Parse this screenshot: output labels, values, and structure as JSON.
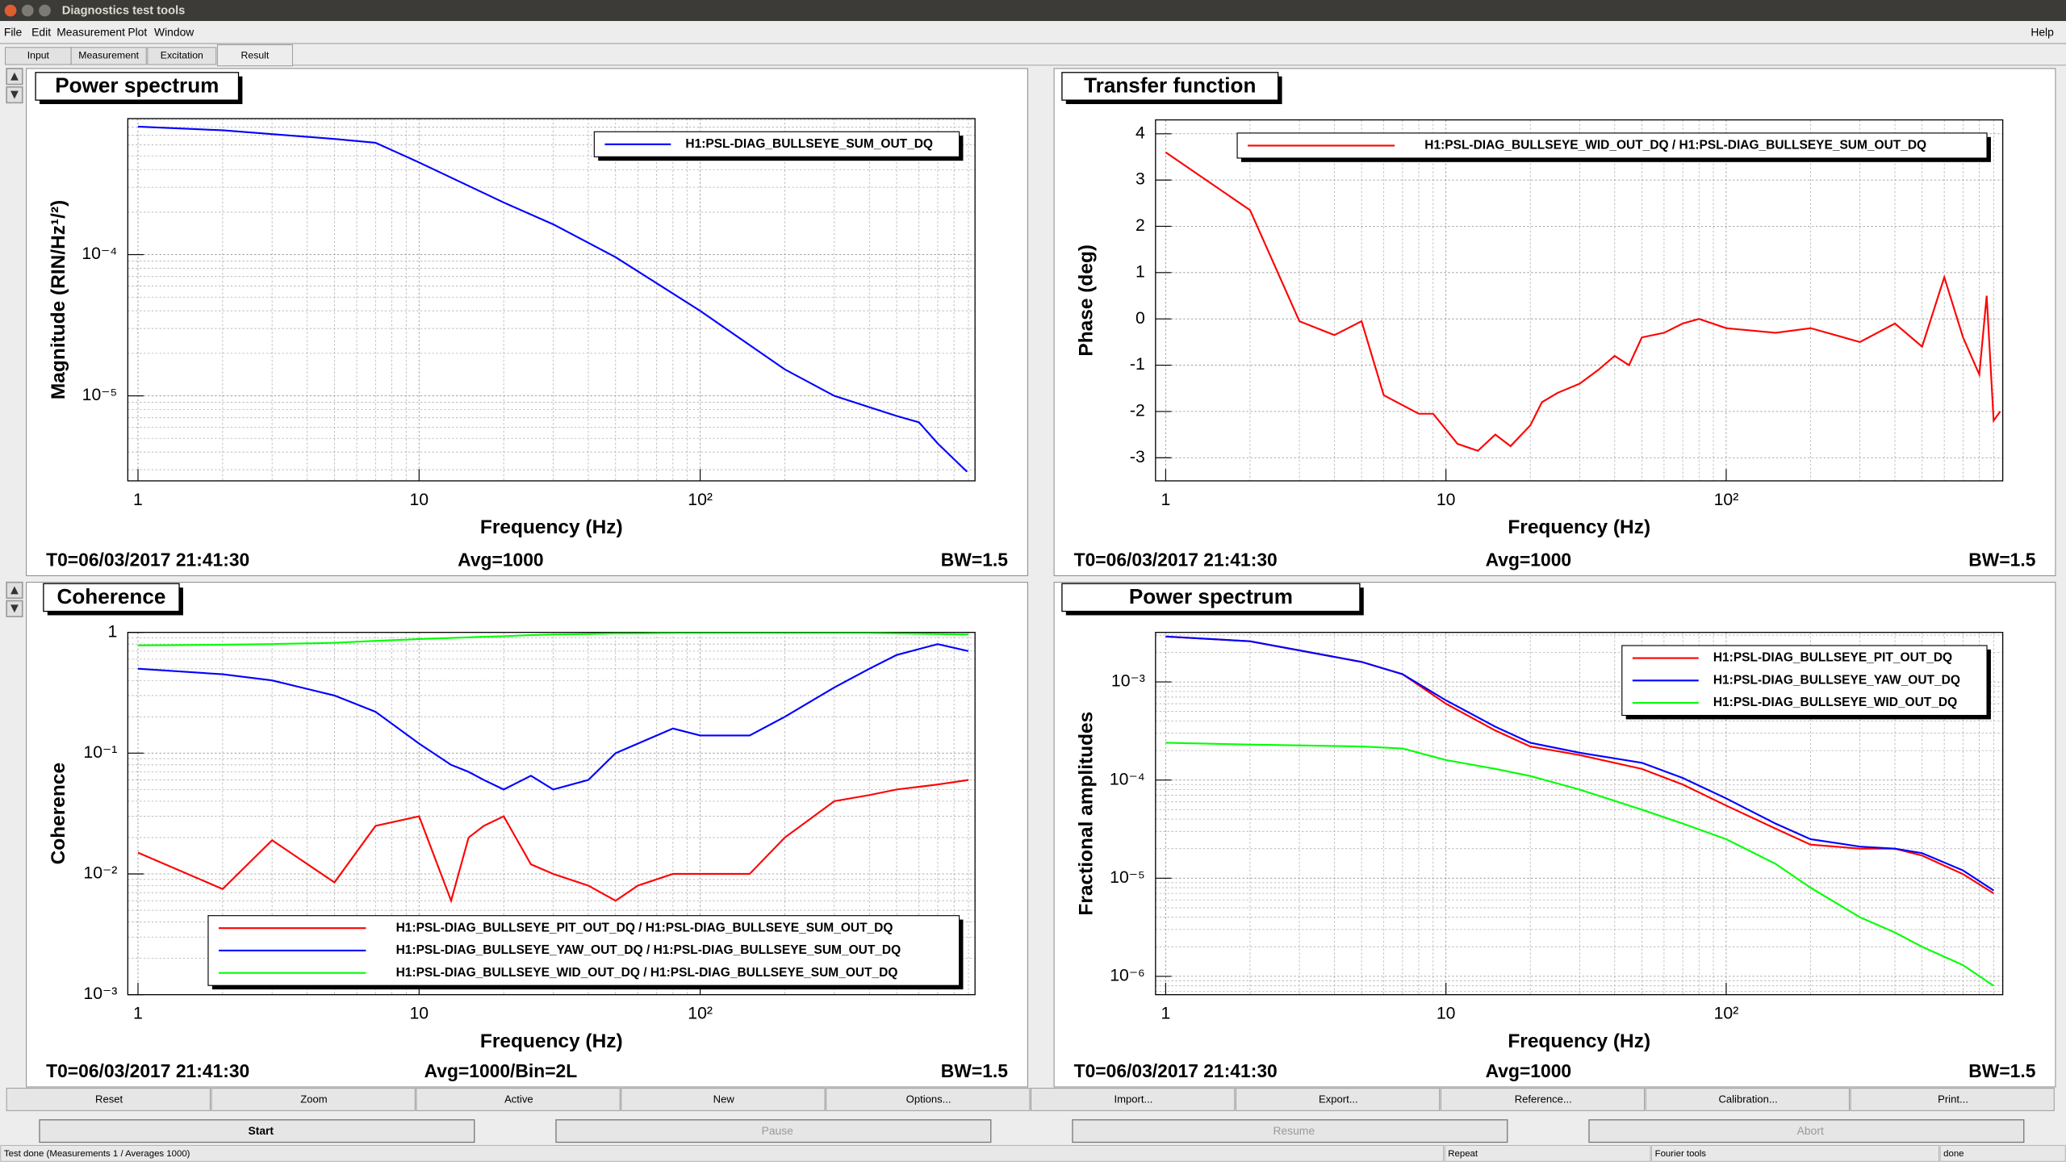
{
  "window": {
    "title": "Diagnostics test tools"
  },
  "menu": [
    "File",
    "Edit",
    "Measurement",
    "Plot",
    "Window"
  ],
  "help": "Help",
  "tabs": [
    "Input",
    "Measurement",
    "Excitation",
    "Result"
  ],
  "chart_data": [
    {
      "type": "line",
      "title": "Power spectrum",
      "xlabel": "Frequency (Hz)",
      "ylabel": "Magnitude (RIN/Hz¹/²)",
      "xlog": true,
      "ylog": true,
      "grid": true,
      "legend": "upper right",
      "xlim": [
        0.92,
        950
      ],
      "ylim": [
        2.5e-06,
        0.00092
      ],
      "xticks": [
        1,
        10,
        {
          "value": 100,
          "label": "10²"
        }
      ],
      "xminorticks": [
        2,
        3,
        4,
        5,
        6,
        7,
        8,
        9,
        20,
        30,
        40,
        50,
        60,
        70,
        80,
        90,
        200,
        300,
        400,
        500,
        600,
        700,
        800,
        900
      ],
      "yticks": [
        {
          "value": 1e-05,
          "label": "10⁻⁵"
        },
        {
          "value": 0.0001,
          "label": "10⁻⁴"
        }
      ],
      "yminorticks": [
        3e-06,
        4e-06,
        5e-06,
        6e-06,
        7e-06,
        8e-06,
        9e-06,
        2e-05,
        3e-05,
        4e-05,
        5e-05,
        6e-05,
        7e-05,
        8e-05,
        9e-05,
        0.0002,
        0.0003,
        0.0004,
        0.0005,
        0.0006,
        0.0007,
        0.0008,
        0.0009
      ],
      "x": [
        1,
        2,
        5,
        7,
        10,
        20,
        30,
        50,
        100,
        200,
        300,
        500,
        600,
        700,
        890
      ],
      "series": [
        {
          "name": "H1:PSL-DIAG_BULLSEYE_SUM_OUT_DQ",
          "color": "#0000ff",
          "values": [
            0.000807,
            0.00076,
            0.00066,
            0.00062,
            0.00045,
            0.000234,
            0.000164,
            9.6e-05,
            4e-05,
            1.54e-05,
            1e-05,
            7.2e-06,
            6.5e-06,
            4.6e-06,
            2.9e-06
          ]
        }
      ],
      "footer": {
        "t0": "T0=06/03/2017 21:41:30",
        "avg": "Avg=1000",
        "bw": "BW=1.5"
      }
    },
    {
      "type": "line",
      "title": "Transfer function",
      "xlabel": "Frequency (Hz)",
      "ylabel": "Phase (deg)",
      "xlog": true,
      "ylog": false,
      "grid": true,
      "legend": "upper right",
      "xlim": [
        0.92,
        970
      ],
      "ylim": [
        -3.5,
        4.3
      ],
      "xticks": [
        1,
        10,
        {
          "value": 100,
          "label": "10²"
        }
      ],
      "xminorticks": [
        2,
        3,
        4,
        5,
        6,
        7,
        8,
        9,
        20,
        30,
        40,
        50,
        60,
        70,
        80,
        90,
        200,
        300,
        400,
        500,
        600,
        700,
        800,
        900
      ],
      "yticks": [
        -3,
        -2,
        -1,
        0,
        1,
        2,
        3,
        4
      ],
      "x": [
        1,
        2,
        3,
        4,
        5,
        6,
        8,
        9,
        11,
        13,
        15,
        17,
        20,
        22,
        25,
        30,
        35,
        40,
        45,
        50,
        60,
        70,
        80,
        100,
        150,
        200,
        300,
        400,
        500,
        600,
        700,
        800,
        850,
        900,
        950
      ],
      "series": [
        {
          "name": "H1:PSL-DIAG_BULLSEYE_WID_OUT_DQ / H1:PSL-DIAG_BULLSEYE_SUM_OUT_DQ",
          "color": "#ff0000",
          "values": [
            3.6,
            2.35,
            -0.05,
            -0.35,
            -0.05,
            -1.65,
            -2.05,
            -2.05,
            -2.7,
            -2.85,
            -2.5,
            -2.75,
            -2.3,
            -1.8,
            -1.6,
            -1.4,
            -1.1,
            -0.8,
            -1.0,
            -0.4,
            -0.3,
            -0.1,
            0.0,
            -0.2,
            -0.3,
            -0.2,
            -0.5,
            -0.1,
            -0.6,
            0.9,
            -0.4,
            -1.2,
            0.5,
            -2.2,
            -2.0
          ]
        }
      ],
      "footer": {
        "t0": "T0=06/03/2017 21:41:30",
        "avg": "Avg=1000",
        "bw": "BW=1.5"
      }
    },
    {
      "type": "line",
      "title": "Coherence",
      "xlabel": "Frequency (Hz)",
      "ylabel": "Coherence",
      "xlog": true,
      "ylog": true,
      "grid": true,
      "legend": "lower right",
      "xlim": [
        0.92,
        950
      ],
      "ylim": [
        0.001,
        1
      ],
      "xticks": [
        1,
        10,
        {
          "value": 100,
          "label": "10²"
        }
      ],
      "xminorticks": [
        2,
        3,
        4,
        5,
        6,
        7,
        8,
        9,
        20,
        30,
        40,
        50,
        60,
        70,
        80,
        90,
        200,
        300,
        400,
        500,
        600,
        700,
        800,
        900
      ],
      "yticks": [
        {
          "value": 0.001,
          "label": "10⁻³"
        },
        {
          "value": 0.01,
          "label": "10⁻²"
        },
        {
          "value": 0.1,
          "label": "10⁻¹"
        },
        1
      ],
      "yminorticks": [
        0.002,
        0.003,
        0.004,
        0.005,
        0.006,
        0.007,
        0.008,
        0.009,
        0.02,
        0.03,
        0.04,
        0.05,
        0.06,
        0.07,
        0.08,
        0.09,
        0.2,
        0.3,
        0.4,
        0.5,
        0.6,
        0.7,
        0.8,
        0.9
      ],
      "x": [
        1,
        2,
        3,
        5,
        7,
        10,
        13,
        15,
        17,
        20,
        25,
        30,
        40,
        50,
        60,
        80,
        100,
        150,
        200,
        300,
        400,
        500,
        700,
        900
      ],
      "series": [
        {
          "name": "H1:PSL-DIAG_BULLSEYE_PIT_OUT_DQ / H1:PSL-DIAG_BULLSEYE_SUM_OUT_DQ",
          "color": "#ff0000",
          "values": [
            0.015,
            0.0075,
            0.019,
            0.0085,
            0.025,
            0.03,
            0.006,
            0.02,
            0.025,
            0.03,
            0.012,
            0.01,
            0.008,
            0.006,
            0.008,
            0.01,
            0.01,
            0.01,
            0.02,
            0.04,
            0.045,
            0.05,
            0.055,
            0.06
          ]
        },
        {
          "name": "H1:PSL-DIAG_BULLSEYE_YAW_OUT_DQ / H1:PSL-DIAG_BULLSEYE_SUM_OUT_DQ",
          "color": "#0000ff",
          "values": [
            0.5,
            0.45,
            0.4,
            0.3,
            0.22,
            0.12,
            0.08,
            0.07,
            0.06,
            0.05,
            0.065,
            0.05,
            0.06,
            0.1,
            0.12,
            0.16,
            0.14,
            0.14,
            0.2,
            0.35,
            0.5,
            0.65,
            0.8,
            0.7
          ]
        },
        {
          "name": "H1:PSL-DIAG_BULLSEYE_WID_OUT_DQ / H1:PSL-DIAG_BULLSEYE_SUM_OUT_DQ",
          "color": "#00ff00",
          "values": [
            0.78,
            0.79,
            0.8,
            0.82,
            0.85,
            0.88,
            0.9,
            0.91,
            0.92,
            0.93,
            0.95,
            0.96,
            0.97,
            0.98,
            0.98,
            0.99,
            0.99,
            0.99,
            0.99,
            0.99,
            0.99,
            0.98,
            0.97,
            0.96
          ]
        }
      ],
      "footer": {
        "t0": "T0=06/03/2017 21:41:30",
        "avg": "Avg=1000/Bin=2L",
        "bw": "BW=1.5"
      }
    },
    {
      "type": "line",
      "title": "Power spectrum",
      "xlabel": "Frequency (Hz)",
      "ylabel": "Fractional amplitudes",
      "xlog": true,
      "ylog": true,
      "grid": true,
      "legend": "upper right",
      "xlim": [
        0.92,
        970
      ],
      "ylim": [
        6.5e-07,
        0.0032
      ],
      "xticks": [
        1,
        10,
        {
          "value": 100,
          "label": "10²"
        }
      ],
      "xminorticks": [
        2,
        3,
        4,
        5,
        6,
        7,
        8,
        9,
        20,
        30,
        40,
        50,
        60,
        70,
        80,
        90,
        200,
        300,
        400,
        500,
        600,
        700,
        800,
        900
      ],
      "yticks": [
        {
          "value": 1e-06,
          "label": "10⁻⁶"
        },
        {
          "value": 1e-05,
          "label": "10⁻⁵"
        },
        {
          "value": 0.0001,
          "label": "10⁻⁴"
        },
        {
          "value": 0.001,
          "label": "10⁻³"
        }
      ],
      "yminorticks": [
        7e-07,
        8e-07,
        9e-07,
        2e-06,
        3e-06,
        4e-06,
        5e-06,
        6e-06,
        7e-06,
        8e-06,
        9e-06,
        2e-05,
        3e-05,
        4e-05,
        5e-05,
        6e-05,
        7e-05,
        8e-05,
        9e-05,
        0.0002,
        0.0003,
        0.0004,
        0.0005,
        0.0006,
        0.0007,
        0.0008,
        0.0009,
        0.002,
        0.003
      ],
      "x": [
        1,
        2,
        5,
        7,
        10,
        15,
        20,
        30,
        50,
        70,
        100,
        150,
        200,
        300,
        400,
        500,
        700,
        900
      ],
      "series": [
        {
          "name": "H1:PSL-DIAG_BULLSEYE_PIT_OUT_DQ",
          "color": "#ff0000",
          "values": [
            0.0029,
            0.0026,
            0.0016,
            0.0012,
            0.0006,
            0.00032,
            0.00022,
            0.00018,
            0.00013,
            9e-05,
            5.5e-05,
            3.2e-05,
            2.2e-05,
            2e-05,
            2e-05,
            1.7e-05,
            1.1e-05,
            7e-06
          ]
        },
        {
          "name": "H1:PSL-DIAG_BULLSEYE_YAW_OUT_DQ",
          "color": "#0000ff",
          "values": [
            0.0029,
            0.0026,
            0.0016,
            0.0012,
            0.00065,
            0.00035,
            0.00024,
            0.00019,
            0.00015,
            0.000105,
            6.5e-05,
            3.6e-05,
            2.5e-05,
            2.1e-05,
            2e-05,
            1.8e-05,
            1.2e-05,
            7.5e-06
          ]
        },
        {
          "name": "H1:PSL-DIAG_BULLSEYE_WID_OUT_DQ",
          "color": "#00ff00",
          "values": [
            0.00024,
            0.00023,
            0.00022,
            0.00021,
            0.00016,
            0.00013,
            0.00011,
            8e-05,
            5e-05,
            3.6e-05,
            2.5e-05,
            1.4e-05,
            8e-06,
            4e-06,
            2.8e-06,
            2e-06,
            1.3e-06,
            8e-07
          ]
        }
      ],
      "footer": {
        "t0": "T0=06/03/2017 21:41:30",
        "avg": "Avg=1000",
        "bw": "BW=1.5"
      }
    }
  ],
  "buttons": [
    "Reset",
    "Zoom",
    "Active",
    "New",
    "Options...",
    "Import...",
    "Export...",
    "Reference...",
    "Calibration...",
    "Print..."
  ],
  "controls": [
    "Start",
    "Pause",
    "Resume",
    "Abort"
  ],
  "status": [
    "Test done (Measurements 1 / Averages 1000)",
    "Repeat",
    "Fourier tools",
    "done"
  ]
}
